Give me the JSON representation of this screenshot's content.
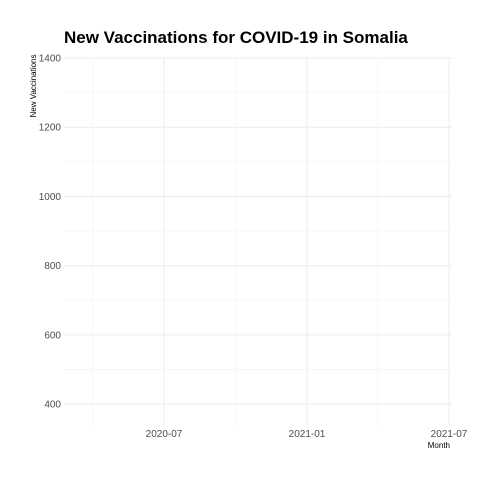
{
  "chart_data": {
    "type": "line",
    "title": "New Vaccinations for COVID-19 in Somalia",
    "xlabel": "Month",
    "ylabel": "New Vaccinations",
    "x_ticks": [
      "2020-07",
      "2021-01",
      "2021-07"
    ],
    "y_ticks": [
      400,
      600,
      800,
      1000,
      1200,
      1400
    ],
    "ylim": [
      340,
      1400
    ],
    "grid": true,
    "legend": "none",
    "series": []
  }
}
